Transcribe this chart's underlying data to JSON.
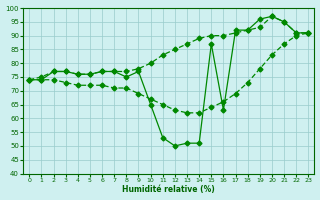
{
  "xlabel": "Humidité relative (%)",
  "background_color": "#cff0f0",
  "grid_color": "#99cccc",
  "line_color": "#008800",
  "xlim": [
    -0.5,
    23.5
  ],
  "ylim": [
    40,
    100
  ],
  "yticks": [
    40,
    45,
    50,
    55,
    60,
    65,
    70,
    75,
    80,
    85,
    90,
    95,
    100
  ],
  "xticks": [
    0,
    1,
    2,
    3,
    4,
    5,
    6,
    7,
    8,
    9,
    10,
    11,
    12,
    13,
    14,
    15,
    16,
    17,
    18,
    19,
    20,
    21,
    22,
    23
  ],
  "line1_x": [
    0,
    1,
    2,
    3,
    4,
    5,
    6,
    7,
    8,
    9,
    10,
    11,
    12,
    13,
    14,
    15,
    16,
    17,
    18,
    19,
    20,
    21,
    22,
    23
  ],
  "line1_y": [
    74,
    74,
    77,
    77,
    76,
    76,
    77,
    77,
    75,
    77,
    65,
    53,
    50,
    51,
    51,
    87,
    63,
    92,
    92,
    96,
    97,
    95,
    91,
    91
  ],
  "line2_x": [
    0,
    1,
    2,
    3,
    4,
    5,
    6,
    7,
    8,
    9,
    10,
    11,
    12,
    13,
    14,
    15,
    16,
    17,
    18,
    19,
    20,
    21,
    22,
    23
  ],
  "line2_y": [
    74,
    75,
    77,
    77,
    76,
    76,
    77,
    77,
    77,
    78,
    80,
    83,
    85,
    87,
    89,
    90,
    90,
    91,
    92,
    93,
    97,
    95,
    91,
    91
  ],
  "line3_x": [
    0,
    1,
    2,
    3,
    4,
    5,
    6,
    7,
    8,
    9,
    10,
    11,
    12,
    13,
    14,
    15,
    16,
    17,
    18,
    19,
    20,
    21,
    22,
    23
  ],
  "line3_y": [
    74,
    74,
    74,
    73,
    72,
    72,
    72,
    71,
    71,
    69,
    67,
    65,
    63,
    62,
    62,
    64,
    66,
    69,
    73,
    78,
    83,
    87,
    90,
    91
  ]
}
